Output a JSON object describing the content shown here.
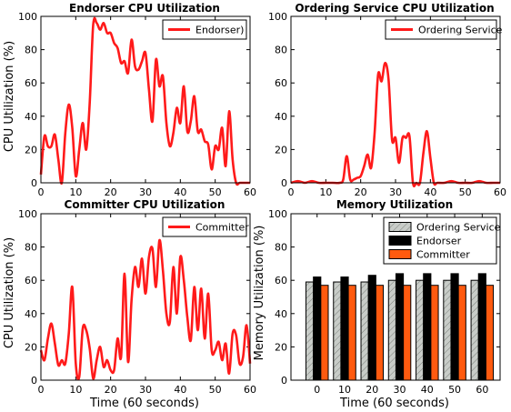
{
  "chart_data": [
    {
      "type": "line",
      "title": "Endorser CPU Utilization",
      "xlabel": "",
      "ylabel": "CPU Utilization (%)",
      "xlim": [
        0,
        60
      ],
      "ylim": [
        0,
        100
      ],
      "xticks": [
        0,
        10,
        20,
        30,
        40,
        50,
        60
      ],
      "yticks": [
        0,
        20,
        40,
        60,
        80,
        100
      ],
      "legend_position": "top-right",
      "series": [
        {
          "name": "Endorser)",
          "color": "#ff1a1a",
          "x": [
            0,
            1,
            2,
            3,
            4,
            5,
            6,
            7,
            8,
            9,
            10,
            11,
            12,
            13,
            14,
            15,
            16,
            17,
            18,
            19,
            20,
            21,
            22,
            23,
            24,
            25,
            26,
            27,
            28,
            29,
            30,
            31,
            32,
            33,
            34,
            35,
            36,
            37,
            38,
            39,
            40,
            41,
            42,
            43,
            44,
            45,
            46,
            47,
            48,
            49,
            50,
            51,
            52,
            53,
            54,
            55,
            56,
            57,
            58,
            59,
            60
          ],
          "y": [
            5,
            28,
            22,
            22,
            29,
            14,
            0,
            30,
            47,
            33,
            4,
            20,
            36,
            20,
            48,
            95,
            96,
            92,
            96,
            90,
            90,
            84,
            81,
            72,
            73,
            66,
            86,
            70,
            68,
            73,
            78,
            56,
            37,
            74,
            58,
            64,
            36,
            22,
            30,
            45,
            36,
            58,
            31,
            37,
            52,
            31,
            32,
            25,
            23,
            8,
            22,
            20,
            33,
            10,
            43,
            14,
            0,
            0,
            0,
            0,
            0
          ]
        }
      ]
    },
    {
      "type": "line",
      "title": "Ordering Service CPU Utilization",
      "xlabel": "",
      "ylabel": "",
      "xlim": [
        0,
        60
      ],
      "ylim": [
        0,
        100
      ],
      "xticks": [
        0,
        10,
        20,
        30,
        40,
        50,
        60
      ],
      "yticks": [
        0,
        20,
        40,
        60,
        80,
        100
      ],
      "legend_position": "top-right",
      "series": [
        {
          "name": "Ordering Service",
          "color": "#ff1a1a",
          "x": [
            0,
            2,
            4,
            6,
            8,
            10,
            12,
            14,
            15,
            16,
            17,
            18,
            19,
            20,
            21,
            22,
            23,
            24,
            25,
            26,
            27,
            28,
            29,
            30,
            31,
            32,
            33,
            34,
            35,
            36,
            37,
            38,
            39,
            40,
            41,
            42,
            44,
            46,
            48,
            50,
            52,
            54,
            56,
            58,
            60
          ],
          "y": [
            0,
            1,
            0,
            1,
            0,
            0,
            0,
            0,
            2,
            16,
            2,
            2,
            3,
            4,
            10,
            17,
            9,
            30,
            65,
            61,
            72,
            62,
            26,
            27,
            12,
            27,
            27,
            28,
            0,
            0,
            0,
            18,
            31,
            15,
            0,
            0,
            0,
            1,
            0,
            0,
            0,
            1,
            0,
            0,
            0
          ]
        }
      ]
    },
    {
      "type": "line",
      "title": "Committer CPU Utilization",
      "xlabel": "Time (60 seconds)",
      "ylabel": "CPU Utilization (%)",
      "xlim": [
        0,
        60
      ],
      "ylim": [
        0,
        100
      ],
      "xticks": [
        0,
        10,
        20,
        30,
        40,
        50,
        60
      ],
      "yticks": [
        0,
        20,
        40,
        60,
        80,
        100
      ],
      "legend_position": "top-right",
      "series": [
        {
          "name": "Committer",
          "color": "#ff1a1a",
          "x": [
            0,
            1,
            2,
            3,
            4,
            5,
            6,
            7,
            8,
            9,
            10,
            11,
            12,
            13,
            14,
            15,
            16,
            17,
            18,
            19,
            20,
            21,
            22,
            23,
            24,
            25,
            26,
            27,
            28,
            29,
            30,
            31,
            32,
            33,
            34,
            35,
            36,
            37,
            38,
            39,
            40,
            41,
            42,
            43,
            44,
            45,
            46,
            47,
            48,
            49,
            50,
            51,
            52,
            53,
            54,
            55,
            56,
            57,
            58,
            59,
            60
          ],
          "y": [
            18,
            12,
            25,
            34,
            22,
            9,
            12,
            10,
            28,
            56,
            10,
            2,
            31,
            30,
            19,
            1,
            12,
            20,
            8,
            12,
            6,
            6,
            25,
            14,
            64,
            11,
            48,
            68,
            56,
            73,
            52,
            74,
            79,
            56,
            84,
            66,
            40,
            35,
            68,
            40,
            74,
            60,
            38,
            24,
            56,
            30,
            55,
            25,
            52,
            18,
            18,
            23,
            12,
            22,
            4,
            28,
            27,
            10,
            14,
            33,
            10
          ]
        }
      ]
    },
    {
      "type": "bar",
      "title": "Memory Utilization",
      "xlabel": "Time (60 seconds)",
      "ylabel": "Memory Utilization (%)",
      "categories": [
        "0",
        "10",
        "20",
        "30",
        "40",
        "50",
        "60"
      ],
      "ylim": [
        0,
        100
      ],
      "yticks": [
        0,
        20,
        40,
        60,
        80,
        100
      ],
      "legend_position": "top-right",
      "series": [
        {
          "name": "Ordering Service",
          "color": "#c8ccc8",
          "hatch": "diagonal",
          "values": [
            59,
            59,
            59,
            60,
            60,
            60,
            60
          ]
        },
        {
          "name": "Endorser",
          "color": "#000000",
          "values": [
            62,
            62,
            63,
            64,
            64,
            64,
            64
          ]
        },
        {
          "name": "Committer",
          "color": "#ff5a0f",
          "values": [
            57,
            57,
            57,
            57,
            57,
            57,
            57
          ]
        }
      ]
    }
  ]
}
